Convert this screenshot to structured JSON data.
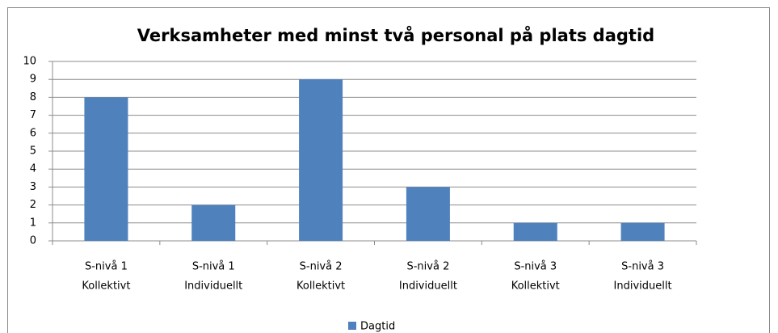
{
  "chart_data": {
    "type": "bar",
    "title": "Verksamheter med minst två personal på plats dagtid",
    "categories": [
      [
        "S-nivå 1",
        "Kollektivt"
      ],
      [
        "S-nivå 1",
        "Individuellt"
      ],
      [
        "S-nivå 2",
        "Kollektivt"
      ],
      [
        "S-nivå 2",
        "Individuellt"
      ],
      [
        "S-nivå 3",
        "Kollektivt"
      ],
      [
        "S-nivå 3",
        "Individuellt"
      ]
    ],
    "series": [
      {
        "name": "Dagtid",
        "color": "#4f81bd",
        "values": [
          8,
          2,
          9,
          3,
          1,
          1
        ]
      }
    ],
    "ylim": [
      0,
      10
    ],
    "yticks": [
      0,
      1,
      2,
      3,
      4,
      5,
      6,
      7,
      8,
      9,
      10
    ],
    "grid": true,
    "legend": "bottom"
  }
}
